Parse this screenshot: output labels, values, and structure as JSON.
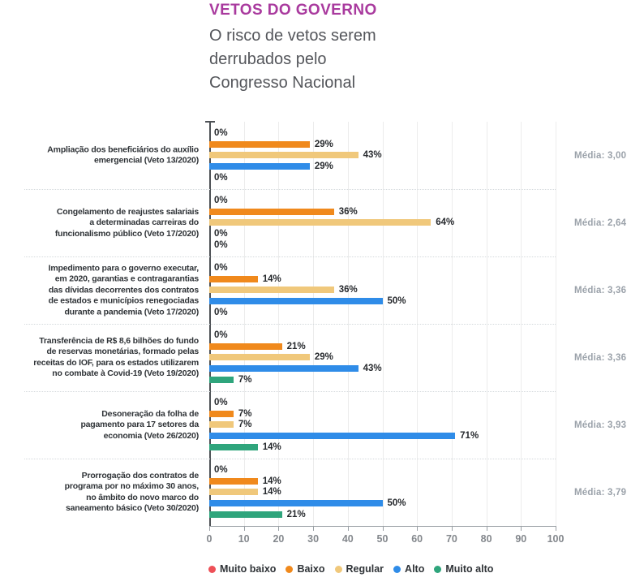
{
  "header": {
    "title": "VETOS DO GOVERNO",
    "subtitle_lines": [
      "O risco de vetos serem",
      "derrubados pelo",
      "Congresso Nacional"
    ]
  },
  "chart_data": {
    "type": "bar",
    "orientation": "horizontal",
    "value_unit": "%",
    "xlim": [
      0,
      100
    ],
    "x_ticks": [
      "0",
      "10",
      "20",
      "30",
      "40",
      "50",
      "60",
      "70",
      "80",
      "90",
      "100"
    ],
    "grid": "vertical",
    "legend_position": "bottom",
    "series": [
      {
        "name": "Muito baixo",
        "color": "#ee5057"
      },
      {
        "name": "Baixo",
        "color": "#f0891c"
      },
      {
        "name": "Regular",
        "color": "#f0c87b"
      },
      {
        "name": "Alto",
        "color": "#2f8ce8"
      },
      {
        "name": "Muito alto",
        "color": "#2fa57c"
      }
    ],
    "groups": [
      {
        "label_lines": [
          "Ampliação dos beneficiários do auxílio",
          "emergencial (Veto 13/2020)"
        ],
        "values": [
          0,
          29,
          43,
          29,
          0
        ],
        "media": "Média: 3,00"
      },
      {
        "label_lines": [
          "Congelamento de reajustes salariais",
          "a determinadas carreiras do",
          "funcionalismo público (Veto 17/2020)"
        ],
        "values": [
          0,
          36,
          64,
          0,
          0
        ],
        "media": "Média: 2,64"
      },
      {
        "label_lines": [
          "Impedimento para o governo executar,",
          "em 2020, garantias e contragarantias",
          "das dívidas decorrentes dos contratos",
          "de estados e municípios renegociadas",
          "durante a pandemia (Veto 17/2020)"
        ],
        "values": [
          0,
          14,
          36,
          50,
          0
        ],
        "media": "Média: 3,36"
      },
      {
        "label_lines": [
          "Transferência de R$ 8,6 bilhões do fundo",
          "de reservas monetárias, formado pelas",
          "receitas do IOF, para os estados utilizarem",
          "no combate à Covid-19 (Veto 19/2020)"
        ],
        "values": [
          0,
          21,
          29,
          43,
          7
        ],
        "media": "Média: 3,36"
      },
      {
        "label_lines": [
          "Desoneração da folha de",
          "pagamento para 17 setores da",
          "economia (Veto 26/2020)"
        ],
        "values": [
          0,
          7,
          7,
          71,
          14
        ],
        "media": "Média: 3,93"
      },
      {
        "label_lines": [
          "Prorrogação dos contratos de",
          "programa por no máximo 30 anos,",
          "no âmbito do novo marco do",
          "saneamento básico (Veto 30/2020)"
        ],
        "values": [
          0,
          14,
          14,
          50,
          21
        ],
        "media": "Média: 3,79"
      }
    ]
  }
}
